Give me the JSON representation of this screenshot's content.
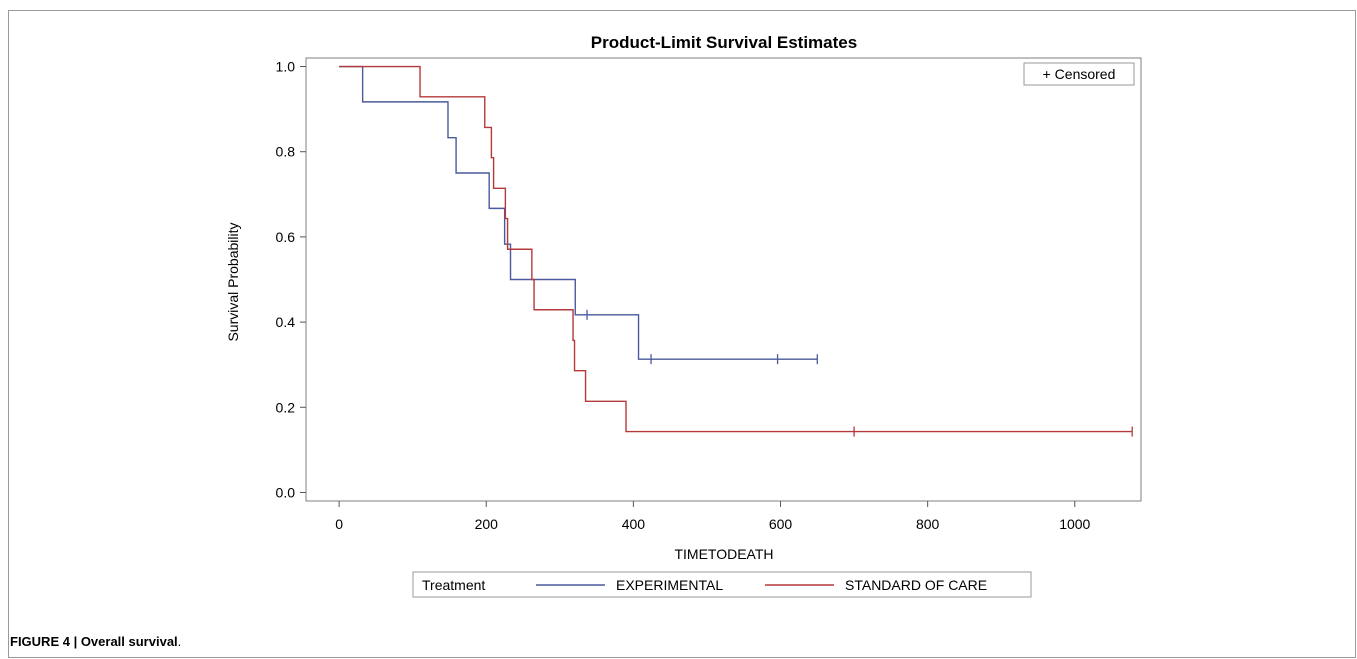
{
  "chart_data": {
    "type": "line",
    "title": "Product-Limit Survival Estimates",
    "xlabel": "TIMETODEATH",
    "ylabel": "Survival Probability",
    "xlim": [
      -45,
      1090
    ],
    "ylim": [
      -0.02,
      1.02
    ],
    "xticks": [
      0,
      200,
      400,
      600,
      800,
      1000
    ],
    "yticks": [
      0.0,
      0.2,
      0.4,
      0.6,
      0.8,
      1.0
    ],
    "grid": false,
    "inset_legend": {
      "position": "top-right",
      "label": "+ Censored"
    },
    "legend": {
      "position": "bottom",
      "title": "Treatment"
    },
    "series": [
      {
        "name": "EXPERIMENTAL",
        "color": "#4a5a9c",
        "steps": [
          [
            0,
            1.0
          ],
          [
            32,
            0.917
          ],
          [
            148,
            0.833
          ],
          [
            159,
            0.75
          ],
          [
            204,
            0.667
          ],
          [
            225,
            0.583
          ],
          [
            233,
            0.5
          ],
          [
            321,
            0.417
          ],
          [
            407,
            0.313
          ]
        ],
        "end_x": 650,
        "censored": [
          [
            337,
            0.417
          ],
          [
            424,
            0.313
          ],
          [
            596,
            0.313
          ],
          [
            650,
            0.313
          ]
        ]
      },
      {
        "name": "STANDARD OF CARE",
        "color": "#b5393a",
        "steps": [
          [
            0,
            1.0
          ],
          [
            110,
            0.929
          ],
          [
            198,
            0.857
          ],
          [
            207,
            0.786
          ],
          [
            210,
            0.714
          ],
          [
            226,
            0.643
          ],
          [
            229,
            0.571
          ],
          [
            262,
            0.5
          ],
          [
            265,
            0.429
          ],
          [
            318,
            0.357
          ],
          [
            320,
            0.286
          ],
          [
            335,
            0.214
          ],
          [
            390,
            0.143
          ]
        ],
        "end_x": 1078,
        "censored": [
          [
            700,
            0.143
          ],
          [
            1078,
            0.143
          ]
        ]
      }
    ]
  },
  "caption": {
    "label": "FIGURE 4 | Overall survival",
    "suffix": "."
  }
}
